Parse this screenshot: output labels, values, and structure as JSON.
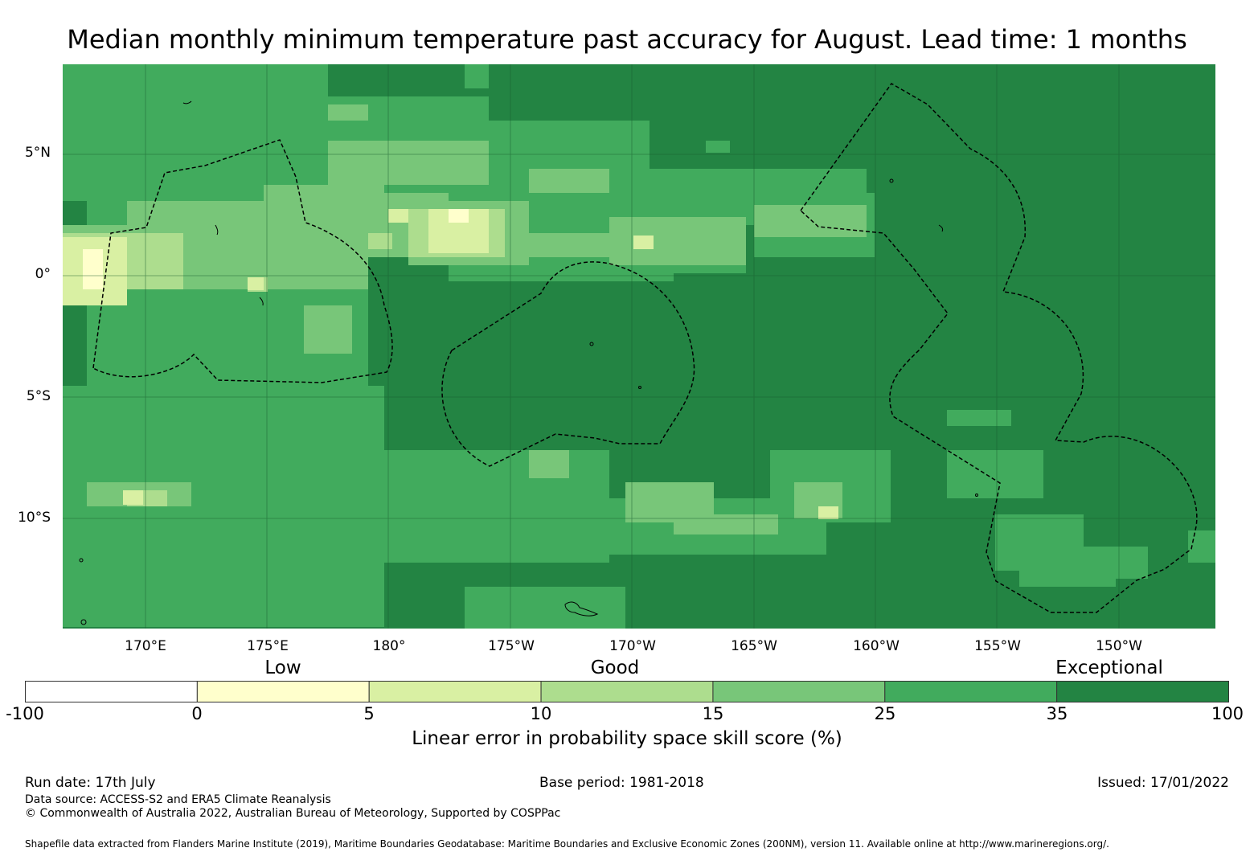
{
  "title": "Median monthly minimum temperature past accuracy for August. Lead time: 1 months",
  "map": {
    "lon_range": [
      166.6,
      213.9
    ],
    "lat_range": [
      -14.6,
      8.6
    ],
    "lat_labels": [
      "5°N",
      "0°",
      "5°S",
      "10°S"
    ],
    "lon_labels": [
      "170°E",
      "175°E",
      "180°",
      "175°W",
      "170°W",
      "165°W",
      "160°W",
      "155°W",
      "150°W"
    ],
    "background_color": "#238443"
  },
  "categories": [
    "Low",
    "Good",
    "Exceptional"
  ],
  "colorbar": {
    "ticks": [
      "-100",
      "0",
      "5",
      "10",
      "15",
      "25",
      "35",
      "100"
    ],
    "colors": [
      "#ffffff",
      "#ffffcc",
      "#d9f0a3",
      "#addd8e",
      "#78c679",
      "#41ab5d",
      "#238443"
    ],
    "label": "Linear error in probability space skill score (%)"
  },
  "footer": {
    "run_date": "Run date: 17th July",
    "base_period": "Base period: 1981-2018",
    "issued": "Issued: 17/01/2022",
    "data_source": "Data source: ACCESS-S2 and ERA5 Climate Reanalysis",
    "copyright": "© Commonwealth of Australia 2022, Australian Bureau of Meteorology, Supported by COSPPac",
    "shapefile": "Shapefile data extracted from Flanders Marine Institute (2019), Maritime Boundaries Geodatabase: Maritime Boundaries and Exclusive Economic Zones (200NM), version 11. Available online at http://www.marineregions.org/."
  }
}
